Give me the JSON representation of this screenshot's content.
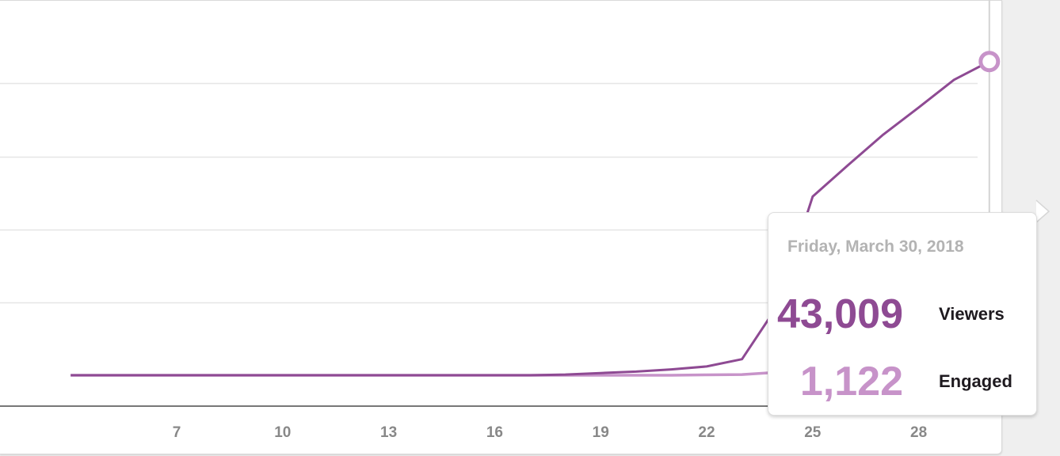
{
  "tooltip": {
    "date": "Friday, March 30, 2018",
    "viewers_value": "43,009",
    "viewers_label": "Viewers",
    "engaged_value": "1,122",
    "engaged_label": "Engaged"
  },
  "colors": {
    "viewers": "#8e4a93",
    "engaged": "#c793c9",
    "grid": "#e6e6e6",
    "axis": "#777777"
  },
  "icons": {
    "next": "chevron-right-icon"
  },
  "chart_data": {
    "type": "line",
    "x": [
      4,
      5,
      6,
      7,
      8,
      9,
      10,
      11,
      12,
      13,
      14,
      15,
      16,
      17,
      18,
      19,
      20,
      21,
      22,
      23,
      24,
      25,
      26,
      27,
      28,
      29,
      30
    ],
    "xticks": [
      "7",
      "10",
      "13",
      "16",
      "19",
      "22",
      "25",
      "28"
    ],
    "xtick_values": [
      7,
      10,
      13,
      16,
      19,
      22,
      25,
      28
    ],
    "ylim": [
      0,
      46000
    ],
    "grid": true,
    "series": [
      {
        "name": "Viewers",
        "values": [
          0,
          0,
          0,
          0,
          0,
          0,
          0,
          0,
          0,
          0,
          0,
          0,
          0,
          0,
          100,
          300,
          500,
          800,
          1200,
          2200,
          9500,
          24500,
          28800,
          33000,
          36700,
          40500,
          43009
        ]
      },
      {
        "name": "Engaged",
        "values": [
          0,
          0,
          0,
          0,
          0,
          0,
          0,
          0,
          0,
          0,
          0,
          0,
          0,
          0,
          0,
          0,
          0,
          0,
          50,
          100,
          400,
          800,
          850,
          900,
          950,
          1000,
          1122
        ]
      }
    ],
    "highlighted_x": 30
  }
}
